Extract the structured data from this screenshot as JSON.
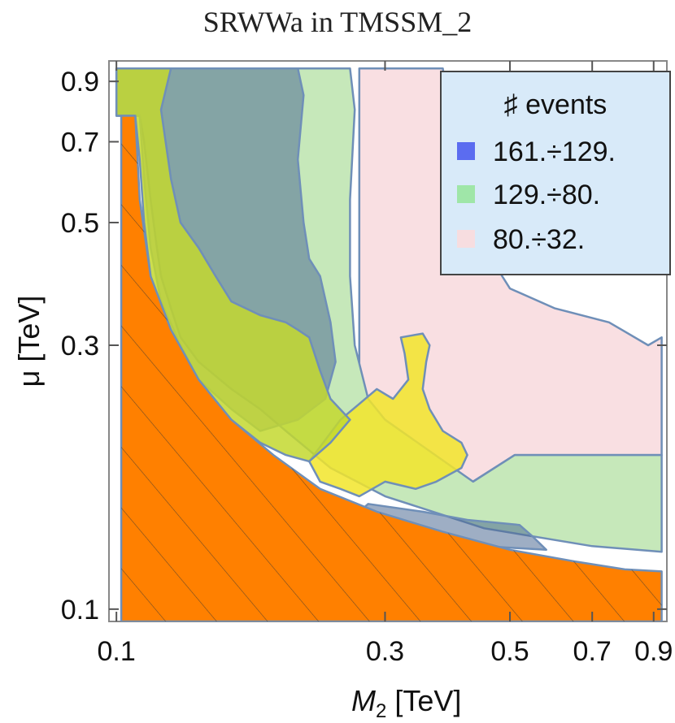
{
  "chart_data": {
    "type": "heatmap",
    "title": "SRWWa in TMSSM_2",
    "xlabel": "M",
    "xlabel_sub": "2",
    "xlabel_unit": " [TeV]",
    "ylabel": "μ [TeV]",
    "x_scale": "log",
    "y_scale": "log",
    "xlim": [
      0.097,
      0.95
    ],
    "ylim": [
      0.095,
      0.98
    ],
    "x_ticks": [
      0.1,
      0.3,
      0.5,
      0.7,
      0.9
    ],
    "x_tick_labels": [
      "0.1",
      "0.3",
      "0.5",
      "0.7",
      "0.9"
    ],
    "y_ticks": [
      0.1,
      0.3,
      0.5,
      0.7,
      0.9
    ],
    "y_tick_labels": [
      "0.1",
      "0.3",
      "0.5",
      "0.7",
      "0.9"
    ],
    "legend": {
      "title": "♯ events",
      "placement": "top-right",
      "entries": [
        {
          "label": "161.÷129.",
          "color": "#5b6cf0"
        },
        {
          "label": "129.÷80.",
          "color": "#9fe6a8"
        },
        {
          "label": "80.÷32.",
          "color": "#f7dde0"
        }
      ]
    },
    "regions": [
      {
        "name": "events-80-32",
        "color": "#f9dfe2",
        "points": [
          [
            0.27,
            0.95
          ],
          [
            0.38,
            0.95
          ],
          [
            0.385,
            0.86
          ],
          [
            0.4,
            0.78
          ],
          [
            0.42,
            0.7
          ],
          [
            0.43,
            0.6
          ],
          [
            0.44,
            0.55
          ],
          [
            0.45,
            0.48
          ],
          [
            0.47,
            0.42
          ],
          [
            0.5,
            0.38
          ],
          [
            0.6,
            0.35
          ],
          [
            0.75,
            0.33
          ],
          [
            0.88,
            0.3
          ],
          [
            0.93,
            0.31
          ],
          [
            0.93,
            0.19
          ],
          [
            0.51,
            0.19
          ],
          [
            0.41,
            0.165
          ],
          [
            0.33,
            0.19
          ],
          [
            0.27,
            0.22
          ]
        ]
      },
      {
        "name": "events-129-80",
        "color": "#c6e8ba",
        "points": [
          [
            0.1,
            0.95
          ],
          [
            0.205,
            0.95
          ],
          [
            0.225,
            0.95
          ],
          [
            0.26,
            0.95
          ],
          [
            0.265,
            0.8
          ],
          [
            0.26,
            0.55
          ],
          [
            0.26,
            0.4
          ],
          [
            0.265,
            0.3
          ],
          [
            0.28,
            0.24
          ],
          [
            0.3,
            0.22
          ],
          [
            0.43,
            0.17
          ],
          [
            0.51,
            0.19
          ],
          [
            0.93,
            0.19
          ],
          [
            0.93,
            0.127
          ],
          [
            0.7,
            0.13
          ],
          [
            0.45,
            0.14
          ],
          [
            0.3,
            0.16
          ],
          [
            0.24,
            0.18
          ],
          [
            0.2,
            0.21
          ],
          [
            0.18,
            0.23
          ],
          [
            0.16,
            0.25
          ],
          [
            0.14,
            0.28
          ],
          [
            0.13,
            0.31
          ],
          [
            0.125,
            0.35
          ],
          [
            0.12,
            0.4
          ],
          [
            0.118,
            0.45
          ],
          [
            0.115,
            0.55
          ],
          [
            0.112,
            0.7
          ],
          [
            0.11,
            0.78
          ],
          [
            0.1,
            0.78
          ]
        ]
      },
      {
        "name": "events-161-129",
        "color": "#4f6c93",
        "opacity": 0.55,
        "points": [
          [
            0.1,
            0.95
          ],
          [
            0.21,
            0.95
          ],
          [
            0.215,
            0.85
          ],
          [
            0.21,
            0.65
          ],
          [
            0.215,
            0.5
          ],
          [
            0.22,
            0.43
          ],
          [
            0.23,
            0.4
          ],
          [
            0.24,
            0.33
          ],
          [
            0.245,
            0.28
          ],
          [
            0.235,
            0.24
          ],
          [
            0.21,
            0.22
          ],
          [
            0.18,
            0.21
          ],
          [
            0.16,
            0.23
          ],
          [
            0.14,
            0.26
          ],
          [
            0.13,
            0.3
          ],
          [
            0.12,
            0.36
          ],
          [
            0.115,
            0.45
          ],
          [
            0.112,
            0.6
          ],
          [
            0.11,
            0.78
          ],
          [
            0.1,
            0.78
          ]
        ]
      },
      {
        "name": "events-161-129-lower",
        "color": "#4f6c93",
        "opacity": 0.55,
        "points": [
          [
            0.28,
            0.155
          ],
          [
            0.35,
            0.15
          ],
          [
            0.42,
            0.145
          ],
          [
            0.52,
            0.142
          ],
          [
            0.55,
            0.135
          ],
          [
            0.58,
            0.128
          ],
          [
            0.45,
            0.13
          ],
          [
            0.36,
            0.135
          ],
          [
            0.3,
            0.14
          ],
          [
            0.26,
            0.145
          ]
        ]
      },
      {
        "name": "yellow-region",
        "color": "#f2e52a",
        "opacity": 0.85,
        "points": [
          [
            0.25,
            0.22
          ],
          [
            0.27,
            0.235
          ],
          [
            0.29,
            0.25
          ],
          [
            0.31,
            0.24
          ],
          [
            0.33,
            0.26
          ],
          [
            0.325,
            0.29
          ],
          [
            0.32,
            0.31
          ],
          [
            0.35,
            0.315
          ],
          [
            0.36,
            0.3
          ],
          [
            0.355,
            0.28
          ],
          [
            0.35,
            0.25
          ],
          [
            0.36,
            0.23
          ],
          [
            0.38,
            0.21
          ],
          [
            0.41,
            0.2
          ],
          [
            0.42,
            0.19
          ],
          [
            0.41,
            0.18
          ],
          [
            0.37,
            0.17
          ],
          [
            0.34,
            0.165
          ],
          [
            0.3,
            0.17
          ],
          [
            0.27,
            0.16
          ],
          [
            0.25,
            0.165
          ],
          [
            0.23,
            0.17
          ],
          [
            0.22,
            0.185
          ]
        ]
      },
      {
        "name": "yellow-green-band",
        "color": "#c3d82f",
        "opacity": 0.85,
        "points": [
          [
            0.1,
            0.95
          ],
          [
            0.125,
            0.95
          ],
          [
            0.12,
            0.8
          ],
          [
            0.125,
            0.6
          ],
          [
            0.13,
            0.5
          ],
          [
            0.14,
            0.45
          ],
          [
            0.15,
            0.4
          ],
          [
            0.16,
            0.36
          ],
          [
            0.18,
            0.34
          ],
          [
            0.2,
            0.33
          ],
          [
            0.21,
            0.32
          ],
          [
            0.22,
            0.31
          ],
          [
            0.23,
            0.27
          ],
          [
            0.24,
            0.24
          ],
          [
            0.26,
            0.22
          ],
          [
            0.24,
            0.2
          ],
          [
            0.22,
            0.185
          ],
          [
            0.2,
            0.19
          ],
          [
            0.18,
            0.2
          ],
          [
            0.16,
            0.22
          ],
          [
            0.14,
            0.25
          ],
          [
            0.13,
            0.28
          ],
          [
            0.12,
            0.33
          ],
          [
            0.115,
            0.4
          ],
          [
            0.112,
            0.5
          ],
          [
            0.11,
            0.65
          ],
          [
            0.108,
            0.78
          ],
          [
            0.1,
            0.78
          ]
        ]
      },
      {
        "name": "excluded-region",
        "color": "#ff8000",
        "points": [
          [
            0.102,
            0.095
          ],
          [
            0.102,
            0.78
          ],
          [
            0.108,
            0.78
          ],
          [
            0.11,
            0.55
          ],
          [
            0.115,
            0.4
          ],
          [
            0.125,
            0.32
          ],
          [
            0.14,
            0.26
          ],
          [
            0.16,
            0.22
          ],
          [
            0.19,
            0.19
          ],
          [
            0.23,
            0.165
          ],
          [
            0.29,
            0.15
          ],
          [
            0.38,
            0.138
          ],
          [
            0.5,
            0.128
          ],
          [
            0.65,
            0.122
          ],
          [
            0.8,
            0.118
          ],
          [
            0.93,
            0.117
          ],
          [
            0.93,
            0.095
          ]
        ]
      }
    ],
    "grid": false
  }
}
